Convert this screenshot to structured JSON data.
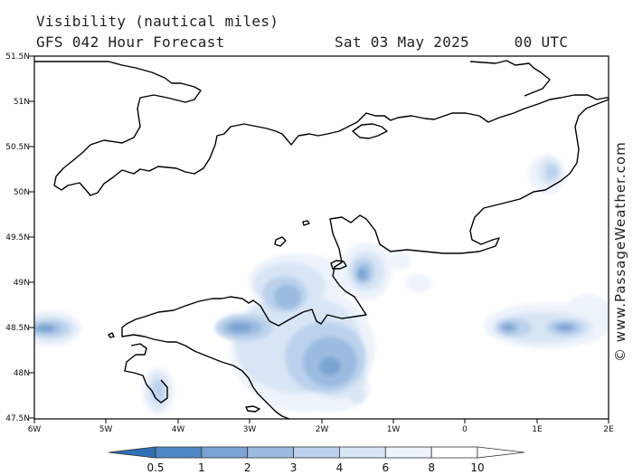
{
  "header": {
    "title": "Visibility (nautical miles)",
    "subtitle": "GFS 042 Hour Forecast",
    "datetime": "Sat 03 May 2025     00 UTC"
  },
  "watermark": "© www.PassageWeather.com",
  "map": {
    "lat_labels": [
      "51.5N",
      "51N",
      "50.5N",
      "50N",
      "49.5N",
      "49N",
      "48.5N",
      "48N",
      "47.5N"
    ],
    "lon_labels": [
      "6W",
      "5W",
      "4W",
      "3W",
      "2W",
      "1W",
      "0",
      "1E",
      "2E"
    ]
  },
  "colorbar": {
    "labels": [
      "0.5",
      "1",
      "2",
      "3",
      "4",
      "6",
      "8",
      "10"
    ],
    "colors": [
      "#2f6fb4",
      "#4f86c4",
      "#7aa3d3",
      "#9cbbe0",
      "#bcd2ec",
      "#d8e5f5",
      "#edf3fb",
      "#ffffff"
    ]
  },
  "palette": {
    "coast": "#000000",
    "frame": "#000000",
    "fog_levels": [
      "#edf3fb",
      "#d8e5f5",
      "#bcd2ec",
      "#9cbbe0",
      "#7aa3d3",
      "#4f86c4"
    ]
  }
}
